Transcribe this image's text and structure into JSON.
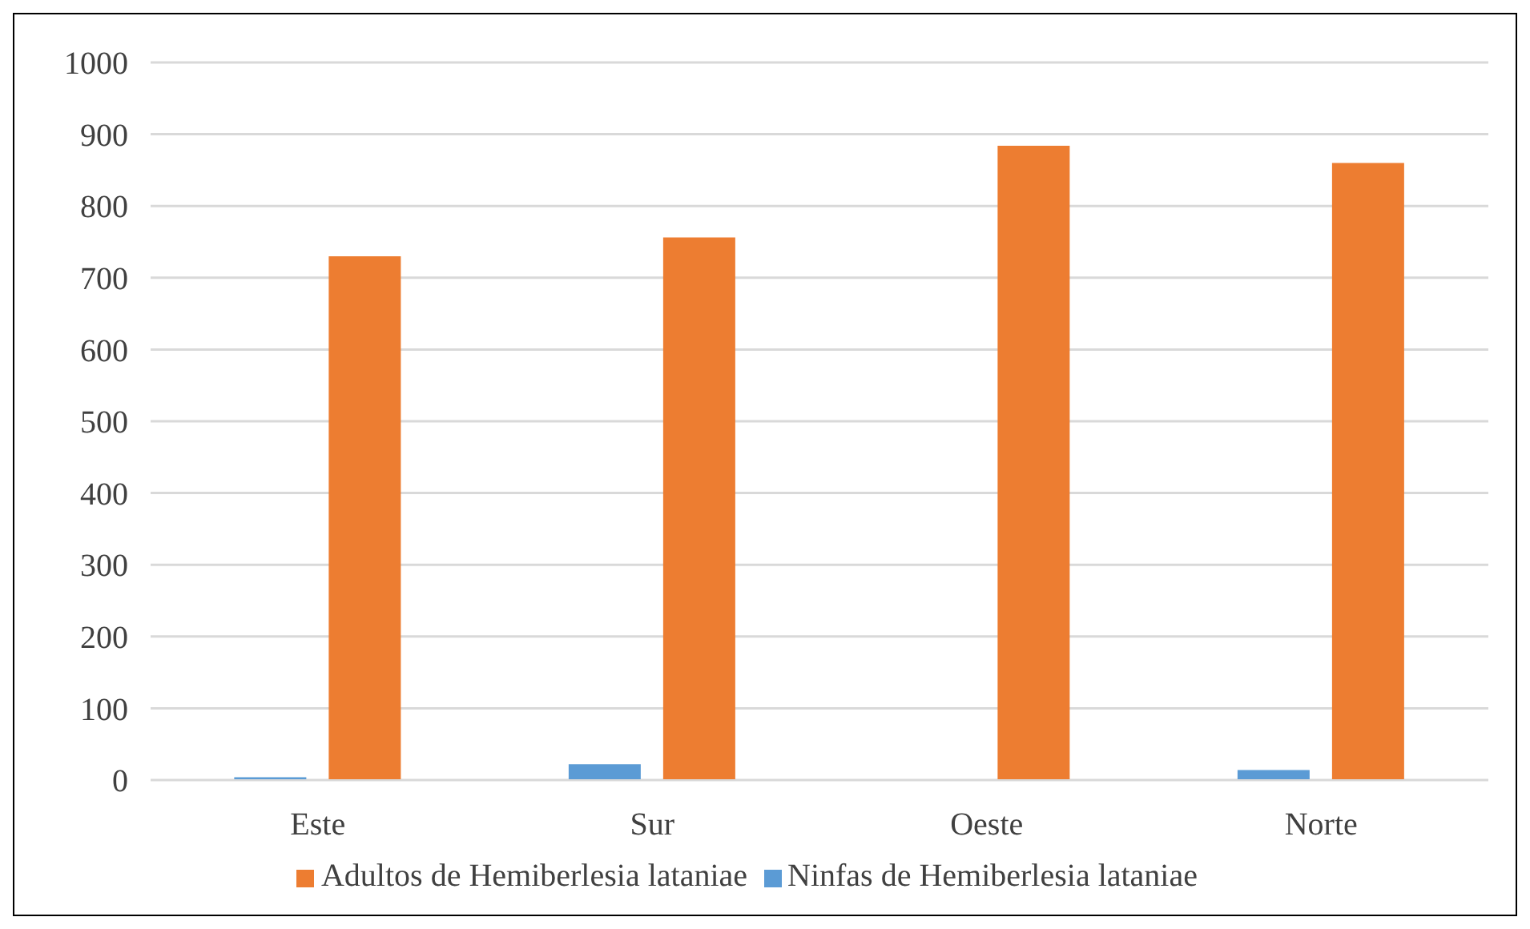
{
  "chart_data": {
    "type": "bar",
    "categories": [
      "Este",
      "Sur",
      "Oeste",
      "Norte"
    ],
    "series": [
      {
        "name": "Ninfas de Hemiberlesia lataniae",
        "color": "#5b9bd5",
        "values": [
          4,
          22,
          0,
          14
        ]
      },
      {
        "name": "Adultos de Hemiberlesia lataniae",
        "color": "#ed7d31",
        "values": [
          730,
          756,
          884,
          860
        ]
      }
    ],
    "ylim": [
      0,
      1000
    ],
    "yticks": [
      0,
      100,
      200,
      300,
      400,
      500,
      600,
      700,
      800,
      900,
      1000
    ],
    "grid": "y",
    "legend": "bottom"
  }
}
